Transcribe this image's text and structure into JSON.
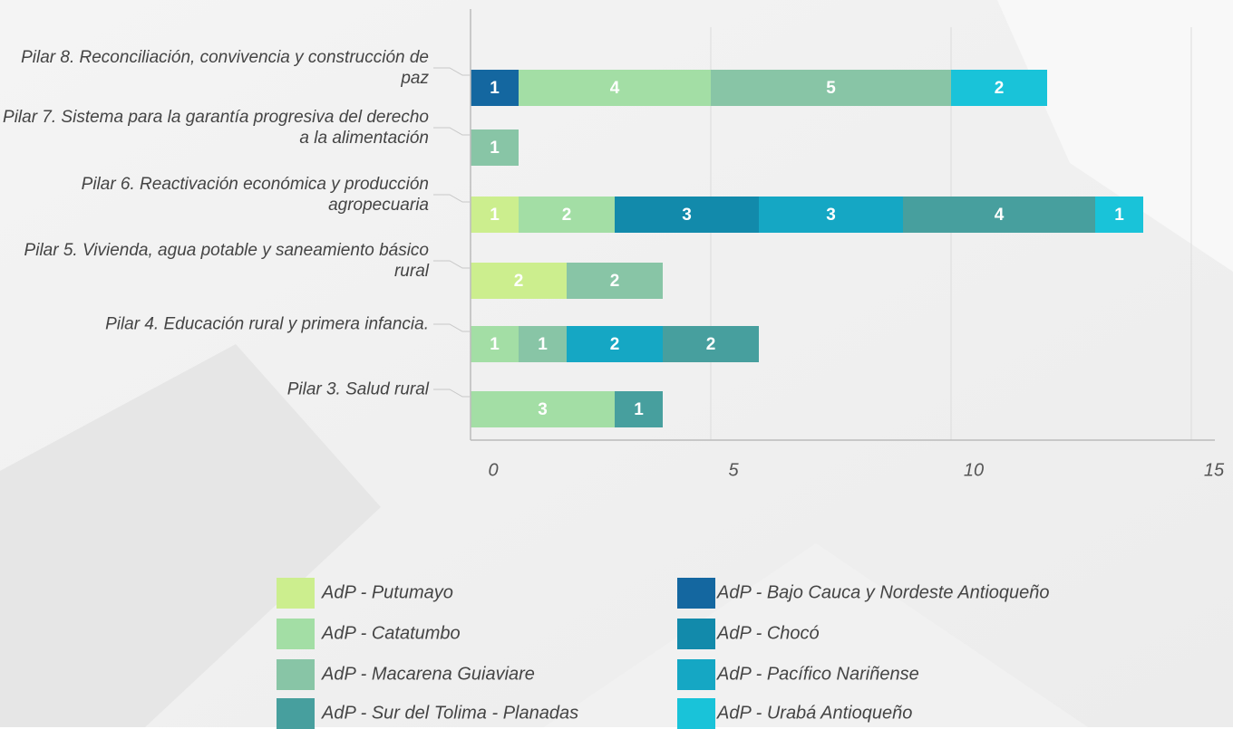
{
  "chart_data": {
    "type": "stacked-barh",
    "categories": [
      "Pilar 8. Reconciliación, convivencia y construcción de paz",
      "Pilar 7. Sistema para la garantía progresiva del derecho a la alimentación",
      "Pilar 6. Reactivación económica y producción agropecuaria",
      "Pilar 5. Vivienda, agua potable y saneamiento básico rural",
      "Pilar 4. Educación rural y primera infancia.",
      "Pilar 3. Salud rural"
    ],
    "series": [
      {
        "name": "AdP - Putumayo",
        "color": "#ccee8e",
        "values": [
          null,
          null,
          1,
          2,
          null,
          null
        ]
      },
      {
        "name": "AdP - Catatumbo",
        "color": "#a3dea5",
        "values": [
          4,
          null,
          2,
          null,
          1,
          3
        ]
      },
      {
        "name": "AdP - Macarena Guiaviare",
        "color": "#88c5a6",
        "values": [
          5,
          1,
          null,
          2,
          1,
          null
        ]
      },
      {
        "name": "AdP - Sur del Tolima - Planadas",
        "color": "#479f9e",
        "values": [
          null,
          null,
          4,
          null,
          2,
          1
        ]
      },
      {
        "name": "AdP - Bajo Cauca y Nordeste Antioqueño",
        "color": "#1467a0",
        "values": [
          1,
          null,
          null,
          null,
          null,
          null
        ]
      },
      {
        "name": "AdP - Chocó",
        "color": "#128aab",
        "values": [
          null,
          null,
          3,
          null,
          null,
          null
        ]
      },
      {
        "name": "AdP - Pacífico Nariñense",
        "color": "#15a7c4",
        "values": [
          null,
          null,
          3,
          null,
          2,
          null
        ]
      },
      {
        "name": "AdP - Urabá Antioqueño",
        "color": "#19c3d9",
        "values": [
          2,
          null,
          1,
          null,
          null,
          null
        ]
      }
    ],
    "xlim": [
      0,
      15
    ],
    "xticks": [
      0,
      5,
      10,
      15
    ],
    "grid": true
  }
}
